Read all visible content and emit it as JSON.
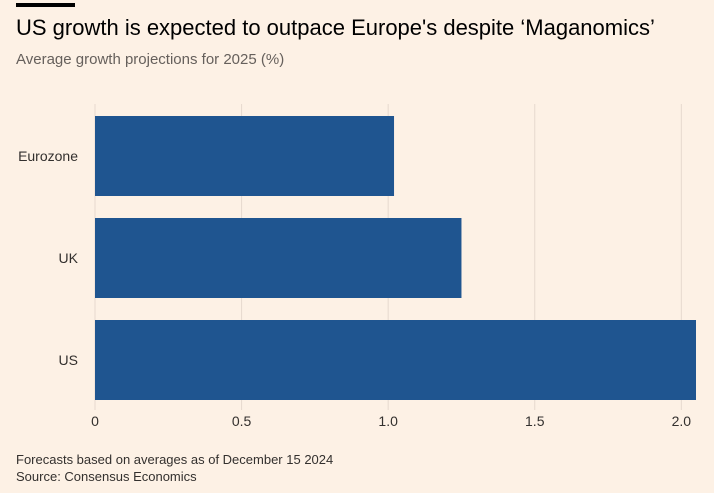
{
  "header": {
    "title": "US growth is expected to outpace Europe's despite ‘Maganomics’",
    "subtitle": "Average growth projections for 2025 (%)"
  },
  "footer": {
    "note": "Forecasts based on averages as of December 15 2024",
    "source": "Source: Consensus Economics"
  },
  "colors": {
    "background": "#FDF1E5",
    "bar": "#1F5590",
    "grid": "#E6D9CE",
    "text": "#33302E"
  },
  "chart_data": {
    "type": "bar",
    "orientation": "horizontal",
    "title": "US growth is expected to outpace Europe's despite ‘Maganomics’",
    "subtitle": "Average growth projections for 2025 (%)",
    "categories": [
      "Eurozone",
      "UK",
      "US"
    ],
    "values": [
      1.02,
      1.25,
      2.05
    ],
    "xlim": [
      0,
      2.05
    ],
    "xticks": [
      "0",
      "0.5",
      "1.0",
      "1.5",
      "2.0"
    ],
    "xtick_values": [
      0,
      0.5,
      1.0,
      1.5,
      2.0
    ],
    "grid": true,
    "legend": false
  }
}
